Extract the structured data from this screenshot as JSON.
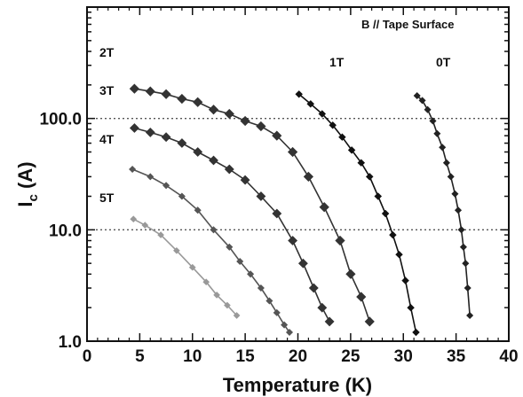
{
  "chart_data": {
    "type": "line",
    "title": "",
    "xlabel": "Temperature (K)",
    "ylabel_main": "I",
    "ylabel_sub": "c",
    "ylabel_unit": " (A)",
    "annotation": "B // Tape Surface",
    "x_range": [
      0,
      40
    ],
    "y_range": [
      1,
      1000
    ],
    "y_scale": "log",
    "x_ticks": [
      "0",
      "5",
      "10",
      "15",
      "20",
      "25",
      "30",
      "35",
      "40"
    ],
    "y_ticks": [
      "1.0",
      "10.0",
      "100.0"
    ],
    "grid": "dotted at y = 10 and y = 100",
    "legend": "none, series labelled inline",
    "series": [
      {
        "name": "0T",
        "color": "#222222",
        "x": [
          31.3,
          31.8,
          32.3,
          32.8,
          33.2,
          33.7,
          34.1,
          34.5,
          34.9,
          35.2,
          35.5,
          35.7,
          35.9,
          36.1,
          36.3
        ],
        "y": [
          160,
          145,
          120,
          95,
          73,
          55,
          40,
          30,
          21,
          15,
          10,
          7,
          5,
          3,
          1.7
        ]
      },
      {
        "name": "1T",
        "color": "#111111",
        "x": [
          20.1,
          21.2,
          22.3,
          23.3,
          24.2,
          25.1,
          26,
          26.8,
          27.6,
          28.3,
          29,
          29.6,
          30.2,
          30.7,
          31.2
        ],
        "y": [
          165,
          135,
          110,
          87,
          68,
          52,
          40,
          30,
          20,
          14,
          9,
          6,
          3.5,
          2,
          1.2
        ]
      },
      {
        "name": "2T",
        "color": "#333333",
        "x": [
          4.5,
          6,
          7.5,
          9,
          10.5,
          12,
          13.5,
          15,
          16.5,
          18,
          19.5,
          21,
          22.5,
          24,
          25,
          26,
          26.8
        ],
        "y": [
          185,
          175,
          165,
          150,
          140,
          120,
          110,
          95,
          85,
          70,
          50,
          30,
          16,
          8,
          4,
          2.5,
          1.5
        ]
      },
      {
        "name": "3T",
        "color": "#333333",
        "x": [
          4.5,
          6,
          7.5,
          9,
          10.5,
          12,
          13.5,
          15,
          16.5,
          18,
          19.5,
          20.5,
          21.5,
          22.3,
          23
        ],
        "y": [
          82,
          75,
          68,
          60,
          50,
          42,
          35,
          28,
          20,
          14,
          8,
          5,
          3,
          2,
          1.5
        ]
      },
      {
        "name": "4T",
        "color": "#555555",
        "x": [
          4.3,
          6,
          7.5,
          9,
          10.5,
          12,
          13.5,
          14.5,
          15.5,
          16.5,
          17.3,
          18,
          18.7,
          19.2
        ],
        "y": [
          35,
          30,
          25,
          20,
          15,
          10,
          7,
          5.2,
          4,
          3,
          2.3,
          1.8,
          1.4,
          1.2
        ]
      },
      {
        "name": "5T",
        "color": "#999999",
        "x": [
          4.4,
          5.5,
          7,
          8.5,
          10,
          11.3,
          12.3,
          13.3,
          14.2
        ],
        "y": [
          12.5,
          11,
          9,
          6.5,
          4.6,
          3.4,
          2.6,
          2.1,
          1.7
        ]
      }
    ]
  }
}
